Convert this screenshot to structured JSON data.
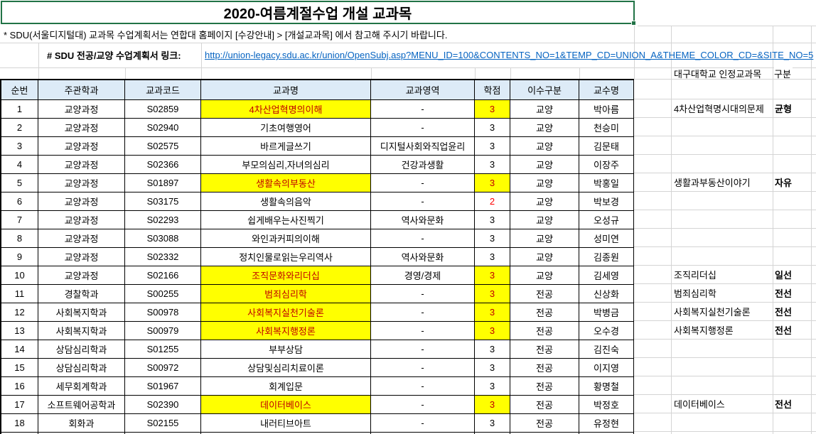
{
  "title": "2020-여름계절수업 개설 교과목",
  "note": "* SDU(서울디지털대) 교과목 수업계획서는 연합대 홈페이지 [수강안내] > [개설교과목] 에서 참고해 주시기 바랍니다.",
  "link": {
    "label": "# SDU 전공/교양 수업계획서 링크:",
    "url": "http://union-legacy.sdu.ac.kr/union/OpenSubj.asp?MENU_ID=100&CONTENTS_NO=1&TEMP_CD=UNION_A&THEME_COLOR_CD=&SITE_NO=5"
  },
  "daegu_header": {
    "name": "대구대학교 인정교과목",
    "category": "구분"
  },
  "colors": {
    "highlight": "#FFFF00",
    "highlight_text": "#C00000",
    "credit_red": "#FF0000",
    "link_blue": "#0563C1",
    "selection_green": "#217346",
    "header_bg": "#DDEBF7"
  },
  "table": {
    "headers": [
      "순번",
      "주관학과",
      "교과코드",
      "교과명",
      "교과영역",
      "학점",
      "이수구분",
      "교수명"
    ],
    "rows": [
      {
        "num": "1",
        "dept": "교양과정",
        "code": "S02859",
        "name": "4차산업혁명의이해",
        "area": "-",
        "credit": "3",
        "type": "교양",
        "prof": "박아름",
        "highlight": true,
        "credit_style": "highlight",
        "daegu_name": "4차산업혁명시대의문제",
        "daegu_category": "균형"
      },
      {
        "num": "2",
        "dept": "교양과정",
        "code": "S02940",
        "name": "기초여행영어",
        "area": "-",
        "credit": "3",
        "type": "교양",
        "prof": "천승미",
        "highlight": false,
        "credit_style": "normal",
        "daegu_name": "",
        "daegu_category": ""
      },
      {
        "num": "3",
        "dept": "교양과정",
        "code": "S02575",
        "name": "바르게글쓰기",
        "area": "디지털사회와직업윤리",
        "credit": "3",
        "type": "교양",
        "prof": "김문태",
        "highlight": false,
        "credit_style": "normal",
        "daegu_name": "",
        "daegu_category": ""
      },
      {
        "num": "4",
        "dept": "교양과정",
        "code": "S02366",
        "name": "부모의심리,자녀의심리",
        "area": "건강과생활",
        "credit": "3",
        "type": "교양",
        "prof": "이장주",
        "highlight": false,
        "credit_style": "normal",
        "daegu_name": "",
        "daegu_category": ""
      },
      {
        "num": "5",
        "dept": "교양과정",
        "code": "S01897",
        "name": "생활속의부동산",
        "area": "-",
        "credit": "3",
        "type": "교양",
        "prof": "박홍일",
        "highlight": true,
        "credit_style": "highlight",
        "daegu_name": "생활과부동산이야기",
        "daegu_category": "자유"
      },
      {
        "num": "6",
        "dept": "교양과정",
        "code": "S03175",
        "name": "생활속의음악",
        "area": "-",
        "credit": "2",
        "type": "교양",
        "prof": "박보경",
        "highlight": false,
        "credit_style": "red",
        "daegu_name": "",
        "daegu_category": ""
      },
      {
        "num": "7",
        "dept": "교양과정",
        "code": "S02293",
        "name": "쉽게배우는사진찍기",
        "area": "역사와문화",
        "credit": "3",
        "type": "교양",
        "prof": "오성규",
        "highlight": false,
        "credit_style": "normal",
        "daegu_name": "",
        "daegu_category": ""
      },
      {
        "num": "8",
        "dept": "교양과정",
        "code": "S03088",
        "name": "와인과커피의이해",
        "area": "-",
        "credit": "3",
        "type": "교양",
        "prof": "성미연",
        "highlight": false,
        "credit_style": "normal",
        "daegu_name": "",
        "daegu_category": ""
      },
      {
        "num": "9",
        "dept": "교양과정",
        "code": "S02332",
        "name": "정치인물로읽는우리역사",
        "area": "역사와문화",
        "credit": "3",
        "type": "교양",
        "prof": "김종원",
        "highlight": false,
        "credit_style": "normal",
        "daegu_name": "",
        "daegu_category": ""
      },
      {
        "num": "10",
        "dept": "교양과정",
        "code": "S02166",
        "name": "조직문화와리더십",
        "area": "경영/경제",
        "credit": "3",
        "type": "교양",
        "prof": "김세영",
        "highlight": true,
        "credit_style": "highlight",
        "daegu_name": "조직리더십",
        "daegu_category": "일선"
      },
      {
        "num": "11",
        "dept": "경찰학과",
        "code": "S00255",
        "name": "범죄심리학",
        "area": "-",
        "credit": "3",
        "type": "전공",
        "prof": "신상화",
        "highlight": true,
        "credit_style": "highlight",
        "daegu_name": "범죄심리학",
        "daegu_category": "전선"
      },
      {
        "num": "12",
        "dept": "사회복지학과",
        "code": "S00978",
        "name": "사회복지실천기술론",
        "area": "-",
        "credit": "3",
        "type": "전공",
        "prof": "박병금",
        "highlight": true,
        "credit_style": "highlight",
        "daegu_name": "사회복지실천기술론",
        "daegu_category": "전선"
      },
      {
        "num": "13",
        "dept": "사회복지학과",
        "code": "S00979",
        "name": "사회복지행정론",
        "area": "-",
        "credit": "3",
        "type": "전공",
        "prof": "오수경",
        "highlight": true,
        "credit_style": "highlight",
        "daegu_name": "사회복지행정론",
        "daegu_category": "전선"
      },
      {
        "num": "14",
        "dept": "상담심리학과",
        "code": "S01255",
        "name": "부부상담",
        "area": "-",
        "credit": "3",
        "type": "전공",
        "prof": "김진숙",
        "highlight": false,
        "credit_style": "normal",
        "daegu_name": "",
        "daegu_category": ""
      },
      {
        "num": "15",
        "dept": "상담심리학과",
        "code": "S00972",
        "name": "상담및심리치료이론",
        "area": "-",
        "credit": "3",
        "type": "전공",
        "prof": "이지영",
        "highlight": false,
        "credit_style": "normal",
        "daegu_name": "",
        "daegu_category": ""
      },
      {
        "num": "16",
        "dept": "세무회계학과",
        "code": "S01967",
        "name": "회계입문",
        "area": "-",
        "credit": "3",
        "type": "전공",
        "prof": "황명철",
        "highlight": false,
        "credit_style": "normal",
        "daegu_name": "",
        "daegu_category": ""
      },
      {
        "num": "17",
        "dept": "소프트웨어공학과",
        "code": "S02390",
        "name": "데이터베이스",
        "area": "-",
        "credit": "3",
        "type": "전공",
        "prof": "박정호",
        "highlight": true,
        "credit_style": "highlight",
        "daegu_name": "데이터베이스",
        "daegu_category": "전선"
      },
      {
        "num": "18",
        "dept": "회화과",
        "code": "S02155",
        "name": "내러티브아트",
        "area": "-",
        "credit": "3",
        "type": "전공",
        "prof": "유정현",
        "highlight": false,
        "credit_style": "normal",
        "daegu_name": "",
        "daegu_category": ""
      }
    ]
  }
}
